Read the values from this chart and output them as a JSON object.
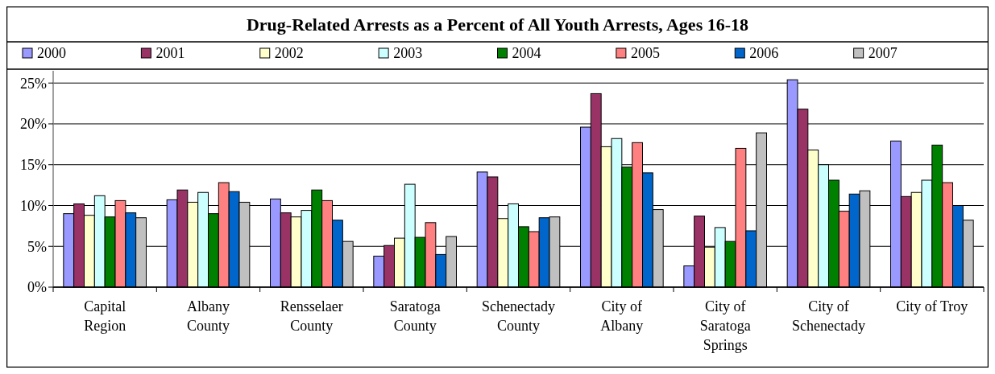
{
  "chart_data": {
    "type": "bar",
    "title": "Drug-Related Arrests as a Percent of All Youth Arrests, Ages 16-18",
    "categories": [
      "Capital Region",
      "Albany County",
      "Rensselaer County",
      "Saratoga County",
      "Schenectady County",
      "City of Albany",
      "City of Saratoga Springs",
      "City of Schenectady",
      "City of Troy"
    ],
    "series": [
      {
        "name": "2000",
        "color": "#9999ff",
        "values": [
          9.0,
          10.7,
          10.8,
          3.8,
          14.1,
          19.6,
          2.6,
          25.4,
          17.9
        ]
      },
      {
        "name": "2001",
        "color": "#993366",
        "values": [
          10.2,
          11.9,
          9.1,
          5.1,
          13.5,
          23.7,
          8.7,
          21.8,
          11.1
        ]
      },
      {
        "name": "2002",
        "color": "#ffffcc",
        "values": [
          8.8,
          10.4,
          8.6,
          6.0,
          8.4,
          17.2,
          4.9,
          16.8,
          11.6
        ]
      },
      {
        "name": "2003",
        "color": "#ccffff",
        "values": [
          11.2,
          11.6,
          9.4,
          12.6,
          10.2,
          18.2,
          7.3,
          15.0,
          13.1
        ]
      },
      {
        "name": "2004",
        "color": "#008000",
        "values": [
          8.6,
          9.0,
          11.9,
          6.1,
          7.4,
          14.7,
          5.6,
          13.1,
          17.4
        ]
      },
      {
        "name": "2005",
        "color": "#ff8080",
        "values": [
          10.6,
          12.8,
          10.6,
          7.9,
          6.8,
          17.7,
          17.0,
          9.3,
          12.8
        ]
      },
      {
        "name": "2006",
        "color": "#0066cc",
        "values": [
          9.1,
          11.7,
          8.2,
          4.0,
          8.5,
          14.0,
          6.9,
          11.4,
          10.0
        ]
      },
      {
        "name": "2007",
        "color": "#c0c0c0",
        "values": [
          8.5,
          10.4,
          5.6,
          6.2,
          8.6,
          9.5,
          18.9,
          11.8,
          8.2
        ]
      }
    ],
    "ylim": [
      0,
      26.5
    ],
    "yticks": [
      {
        "value": 0,
        "label": "0%"
      },
      {
        "value": 5,
        "label": "5%"
      },
      {
        "value": 10,
        "label": "10%"
      },
      {
        "value": 15,
        "label": "15%"
      },
      {
        "value": 20,
        "label": "20%"
      },
      {
        "value": 25,
        "label": "25%"
      }
    ],
    "grid": "y",
    "legend": "top"
  }
}
